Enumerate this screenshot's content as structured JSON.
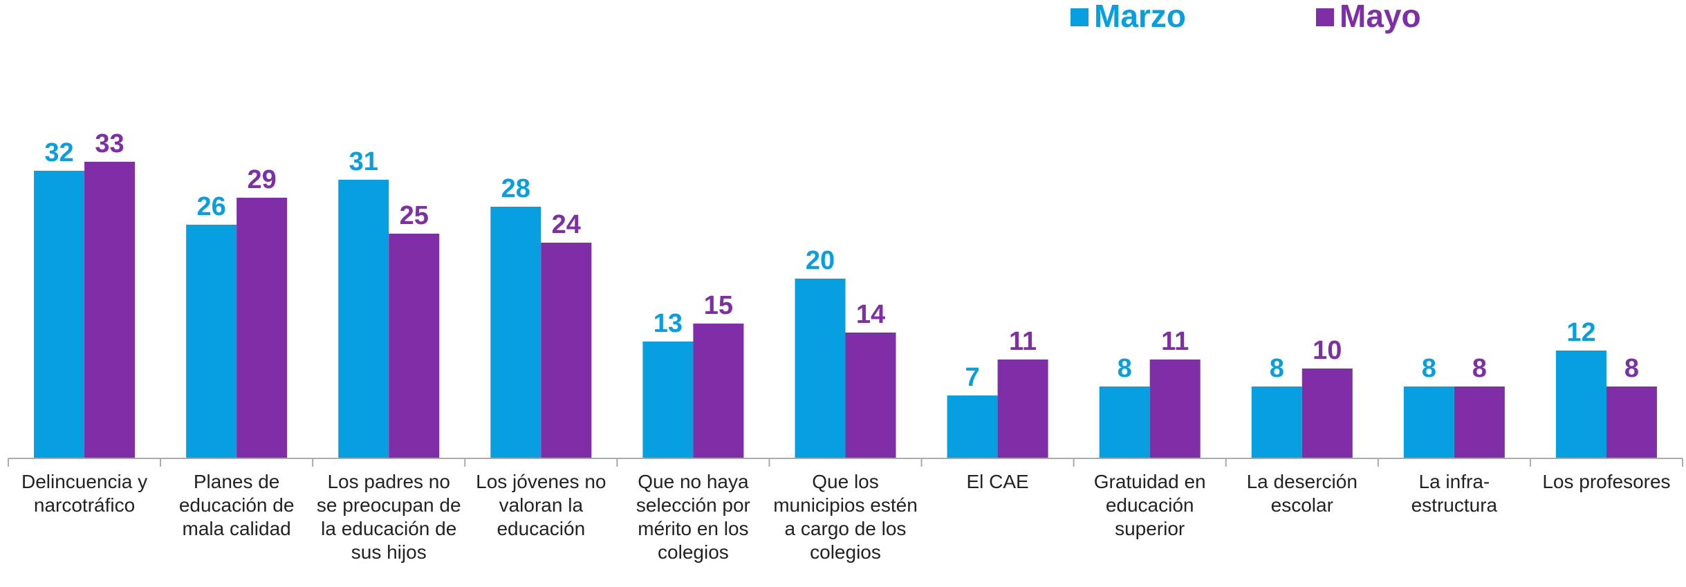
{
  "chart_data": {
    "type": "bar",
    "categories": [
      "Delincuencia y narcotráfico",
      "Planes de educación de mala calidad",
      "Los padres no se preocupan de la educación de sus hijos",
      "Los jóvenes no valoran la educación",
      "Que no haya selección por mérito en los colegios",
      "Que los municipios estén a cargo de los colegios",
      "El CAE",
      "Gratuidad en educación superior",
      "La deserción escolar",
      "La infra-estructura",
      "Los profesores"
    ],
    "series": [
      {
        "name": "Marzo",
        "color": "#079fdf",
        "values": [
          32,
          26,
          31,
          28,
          13,
          20,
          7,
          8,
          8,
          8,
          12
        ]
      },
      {
        "name": "Mayo",
        "color": "#7f2ea7",
        "values": [
          33,
          29,
          25,
          24,
          15,
          14,
          11,
          11,
          10,
          8,
          8
        ]
      }
    ],
    "ylim": [
      0,
      40
    ]
  }
}
